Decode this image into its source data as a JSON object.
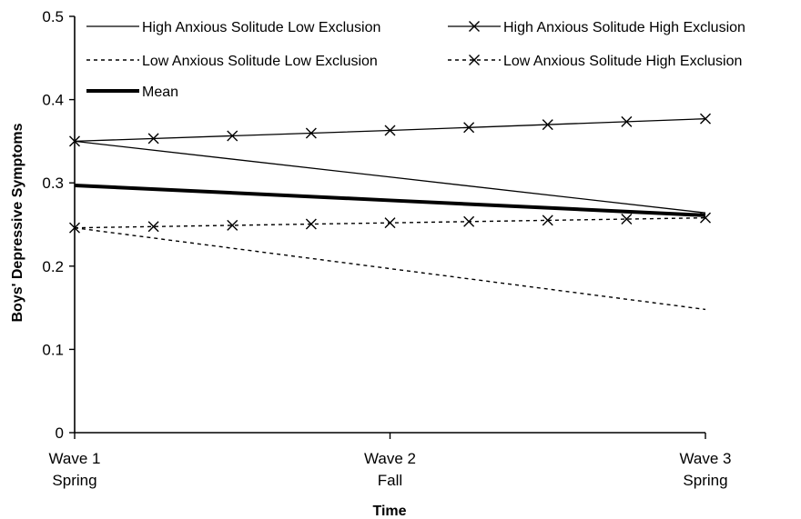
{
  "chart_data": {
    "type": "line",
    "xlabel": "Time",
    "ylabel": "Boys' Depressive Symptoms",
    "ylim": [
      0,
      0.5
    ],
    "yticks": [
      "0",
      "0.1",
      "0.2",
      "0.3",
      "0.4",
      "0.5"
    ],
    "x_categories": [
      {
        "line1": "Wave 1",
        "line2": "Spring"
      },
      {
        "line1": "Wave 2",
        "line2": "Fall"
      },
      {
        "line1": "Wave 3",
        "line2": "Spring"
      }
    ],
    "grid": false,
    "legend_position": "top",
    "series": [
      {
        "name": "High Anxious Solitude Low Exclusion",
        "values": [
          0.35,
          0.307,
          0.264
        ],
        "style": "solid-thin",
        "markers": false
      },
      {
        "name": "High Anxious Solitude High Exclusion",
        "values": [
          0.35,
          0.363,
          0.377
        ],
        "style": "solid-thin",
        "markers": true
      },
      {
        "name": "Low Anxious Solitude Low Exclusion",
        "values": [
          0.246,
          0.197,
          0.148
        ],
        "style": "dotted",
        "markers": false
      },
      {
        "name": "Low Anxious Solitude High Exclusion",
        "values": [
          0.246,
          0.252,
          0.258
        ],
        "style": "dotted",
        "markers": true
      },
      {
        "name": "Mean",
        "values": [
          0.297,
          0.279,
          0.261
        ],
        "style": "thick",
        "markers": false
      }
    ]
  }
}
